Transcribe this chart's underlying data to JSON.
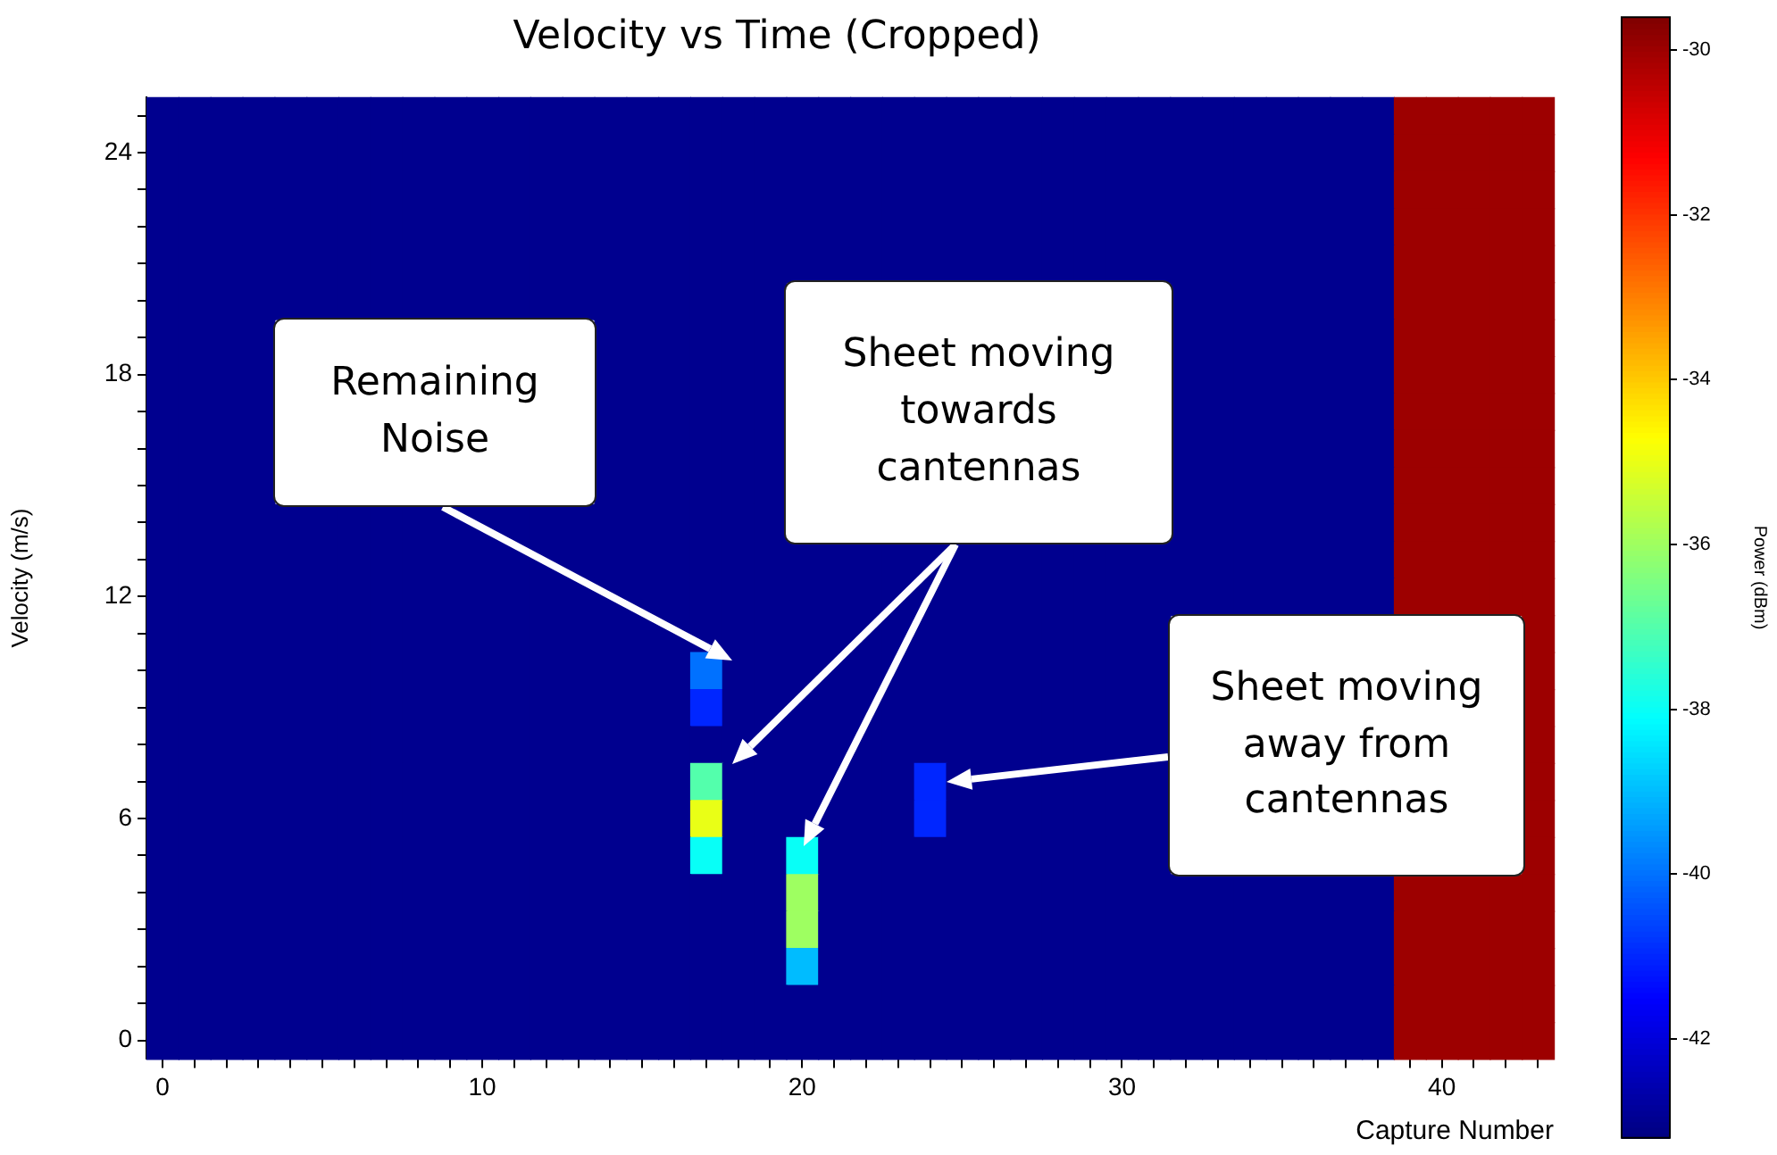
{
  "chart_data": {
    "type": "heatmap",
    "title": "Velocity vs Time (Cropped)",
    "xlabel": "Capture Number",
    "ylabel": "Velocity (m/s)",
    "clabel": "Power (dBm)",
    "categories": [
      "0",
      null,
      null,
      null,
      null,
      null,
      null,
      null,
      null,
      null,
      "10",
      null,
      null,
      null,
      null,
      null,
      null,
      null,
      null,
      null,
      "20",
      null,
      null,
      null,
      null,
      null,
      null,
      null,
      null,
      null,
      "30",
      null,
      null,
      null,
      null,
      null,
      null,
      null,
      null,
      null,
      "40",
      null,
      null,
      null
    ],
    "y_categories": [
      null,
      "24",
      null,
      null,
      null,
      null,
      null,
      "18",
      null,
      null,
      null,
      null,
      null,
      "12",
      null,
      null,
      null,
      null,
      null,
      "6",
      null,
      null,
      null,
      null,
      null,
      "0"
    ],
    "cells": [
      [
        -43,
        -43,
        -43,
        -43,
        -43,
        -43,
        -43,
        -43,
        -43,
        -43,
        -43,
        -43,
        -43,
        -43,
        -43,
        -43,
        -43,
        -43,
        -43,
        -43,
        -43,
        -43,
        -43,
        -43,
        -43,
        -43,
        -43,
        -43,
        -43,
        -43,
        -43,
        -43,
        -43,
        -43,
        -43,
        -43,
        -43,
        -43,
        -43,
        -30,
        -30,
        -30,
        -30,
        -30
      ],
      [
        -43,
        -43,
        -43,
        -43,
        -43,
        -43,
        -43,
        -43,
        -43,
        -43,
        -43,
        -43,
        -43,
        -43,
        -43,
        -43,
        -43,
        -43,
        -43,
        -43,
        -43,
        -43,
        -43,
        -43,
        -43,
        -43,
        -43,
        -43,
        -43,
        -43,
        -43,
        -43,
        -43,
        -43,
        -43,
        -43,
        -43,
        -43,
        -43,
        -30,
        -30,
        -30,
        -30,
        -30
      ],
      [
        -43,
        -43,
        -43,
        -43,
        -43,
        -43,
        -43,
        -43,
        -43,
        -43,
        -43,
        -43,
        -43,
        -43,
        -43,
        -43,
        -43,
        -43,
        -43,
        -43,
        -43,
        -43,
        -43,
        -43,
        -43,
        -43,
        -43,
        -43,
        -43,
        -43,
        -43,
        -43,
        -43,
        -43,
        -43,
        -43,
        -43,
        -43,
        -43,
        -30,
        -30,
        -30,
        -30,
        -30
      ],
      [
        -43,
        -43,
        -43,
        -43,
        -43,
        -43,
        -43,
        -43,
        -43,
        -43,
        -43,
        -43,
        -43,
        -43,
        -43,
        -43,
        -43,
        -43,
        -43,
        -43,
        -43,
        -43,
        -43,
        -43,
        -43,
        -43,
        -43,
        -43,
        -43,
        -43,
        -43,
        -43,
        -43,
        -43,
        -43,
        -43,
        -43,
        -43,
        -43,
        -30,
        -30,
        -30,
        -30,
        -30
      ],
      [
        -43,
        -43,
        -43,
        -43,
        -43,
        -43,
        -43,
        -43,
        -43,
        -43,
        -43,
        -43,
        -43,
        -43,
        -43,
        -43,
        -43,
        -43,
        -43,
        -43,
        -43,
        -43,
        -43,
        -43,
        -43,
        -43,
        -43,
        -43,
        -43,
        -43,
        -43,
        -43,
        -43,
        -43,
        -43,
        -43,
        -43,
        -43,
        -43,
        -30,
        -30,
        -30,
        -30,
        -30
      ],
      [
        -43,
        -43,
        -43,
        -43,
        -43,
        -43,
        -43,
        -43,
        -43,
        -43,
        -43,
        -43,
        -43,
        -43,
        -43,
        -43,
        -43,
        -43,
        -43,
        -43,
        null,
        null,
        null,
        null,
        null,
        null,
        null,
        null,
        null,
        null,
        null,
        null,
        -43,
        -43,
        -43,
        -43,
        -43,
        -43,
        -43,
        -30,
        -30,
        -30,
        -30,
        -30
      ],
      [
        -43,
        -43,
        -43,
        -43,
        null,
        null,
        null,
        null,
        null,
        null,
        null,
        null,
        null,
        null,
        -43,
        -43,
        -43,
        -43,
        -43,
        -43,
        null,
        null,
        null,
        null,
        null,
        null,
        null,
        null,
        null,
        null,
        null,
        null,
        -43,
        -43,
        -43,
        -43,
        -43,
        -43,
        -43,
        -30,
        -30,
        -30,
        -30,
        -30
      ],
      [
        -43,
        -43,
        -43,
        -43,
        null,
        null,
        null,
        null,
        null,
        null,
        null,
        null,
        null,
        null,
        -43,
        -43,
        -43,
        -43,
        -43,
        -43,
        null,
        null,
        null,
        null,
        null,
        null,
        null,
        null,
        null,
        null,
        null,
        null,
        -43,
        -43,
        -43,
        -43,
        -43,
        -43,
        -43,
        -30,
        -30,
        -30,
        -30,
        -30
      ],
      [
        -43,
        -43,
        -43,
        -43,
        null,
        null,
        null,
        null,
        null,
        null,
        null,
        null,
        null,
        null,
        -43,
        -43,
        -43,
        -43,
        -43,
        -43,
        null,
        null,
        null,
        null,
        null,
        null,
        null,
        null,
        null,
        null,
        null,
        null,
        -43,
        -43,
        -43,
        -43,
        -43,
        -43,
        -43,
        -30,
        -30,
        -30,
        -30,
        -30
      ],
      [
        -43,
        -43,
        -43,
        -43,
        null,
        null,
        null,
        null,
        null,
        null,
        null,
        null,
        null,
        null,
        -43,
        -43,
        -43,
        -43,
        -43,
        -43,
        null,
        null,
        null,
        null,
        null,
        null,
        null,
        null,
        null,
        null,
        null,
        null,
        -43,
        -43,
        -43,
        -43,
        -43,
        -43,
        -43,
        -30,
        -30,
        -30,
        -30,
        -30
      ],
      [
        -43,
        -43,
        -43,
        -43,
        null,
        null,
        null,
        null,
        null,
        null,
        null,
        null,
        null,
        null,
        -43,
        -43,
        -43,
        -43,
        -43,
        -43,
        null,
        null,
        null,
        null,
        null,
        null,
        null,
        null,
        null,
        null,
        null,
        null,
        -43,
        -43,
        -43,
        -43,
        -43,
        -43,
        -43,
        -30,
        -30,
        -30,
        -30,
        -30
      ],
      [
        -43,
        -43,
        -43,
        -43,
        -43,
        -43,
        -43,
        -43,
        -43,
        -43,
        -43,
        -43,
        -43,
        -43,
        -43,
        -43,
        -43,
        -43,
        -43,
        -43,
        null,
        null,
        null,
        null,
        null,
        null,
        null,
        null,
        null,
        null,
        null,
        null,
        -43,
        -43,
        -43,
        -43,
        -43,
        -43,
        -43,
        -30,
        -30,
        -30,
        -30,
        -30
      ],
      [
        -43,
        -43,
        -43,
        -43,
        -43,
        -43,
        -43,
        -43,
        -43,
        -43,
        -43,
        -43,
        -43,
        -43,
        -43,
        -43,
        -43,
        -43,
        -43,
        -43,
        -43,
        -43,
        -43,
        -43,
        -43,
        -43,
        -43,
        -43,
        -43,
        -43,
        -43,
        -43,
        -43,
        -43,
        -43,
        -43,
        -43,
        -43,
        -43,
        -30,
        -30,
        -30,
        -30,
        -30
      ],
      [
        -43,
        -43,
        -43,
        -43,
        -43,
        -43,
        -43,
        -43,
        -43,
        -43,
        -43,
        -43,
        -43,
        -43,
        -43,
        -43,
        -43,
        -43,
        -43,
        -43,
        -43,
        -43,
        -43,
        -43,
        -43,
        -43,
        -43,
        -43,
        -43,
        -43,
        -43,
        -43,
        -43,
        -43,
        -43,
        -43,
        -43,
        -43,
        -43,
        -30,
        -30,
        -30,
        -30,
        -30
      ],
      [
        -43,
        -43,
        -43,
        -43,
        -43,
        -43,
        -43,
        -43,
        -43,
        -43,
        -43,
        -43,
        -43,
        -43,
        -43,
        -43,
        -43,
        -43,
        -43,
        -43,
        -43,
        -43,
        -43,
        -43,
        -43,
        -43,
        -43,
        -43,
        -43,
        -43,
        -43,
        -43,
        null,
        null,
        null,
        null,
        null,
        null,
        null,
        null,
        null,
        null,
        null,
        -30
      ],
      [
        -43,
        -43,
        -43,
        -43,
        -43,
        -43,
        -43,
        -43,
        -43,
        -43,
        -43,
        -43,
        -43,
        -43,
        -43,
        -43,
        -43,
        -40,
        -43,
        -43,
        -43,
        -43,
        -43,
        -43,
        -43,
        -43,
        -43,
        -43,
        -43,
        -43,
        -43,
        -43,
        null,
        null,
        null,
        null,
        null,
        null,
        null,
        null,
        null,
        null,
        null,
        -30
      ],
      [
        -43,
        -43,
        -43,
        -43,
        -43,
        -43,
        -43,
        -43,
        -43,
        -43,
        -43,
        -43,
        -43,
        -43,
        -43,
        -43,
        -43,
        -41,
        -43,
        -43,
        -43,
        -43,
        -43,
        -43,
        -43,
        -43,
        -43,
        -43,
        -43,
        -43,
        -43,
        -43,
        null,
        null,
        null,
        null,
        null,
        null,
        null,
        null,
        null,
        null,
        null,
        -30
      ],
      [
        -43,
        -43,
        -43,
        -43,
        -43,
        -43,
        -43,
        -43,
        -43,
        -43,
        -43,
        -43,
        -43,
        -43,
        -43,
        -43,
        -43,
        -43,
        -43,
        -43,
        -43,
        -43,
        -43,
        -43,
        -43,
        -43,
        -43,
        -43,
        -43,
        -43,
        -43,
        -43,
        null,
        null,
        null,
        null,
        null,
        null,
        null,
        null,
        null,
        null,
        null,
        -30
      ],
      [
        -43,
        -43,
        -43,
        -43,
        -43,
        -43,
        -43,
        -43,
        -43,
        -43,
        -43,
        -43,
        -43,
        -43,
        -43,
        -43,
        -43,
        -37,
        -43,
        -43,
        -43,
        -43,
        -43,
        -43,
        -41,
        -43,
        -43,
        -43,
        -43,
        -43,
        -43,
        -43,
        null,
        null,
        null,
        null,
        null,
        null,
        null,
        null,
        null,
        null,
        null,
        -30
      ],
      [
        -43,
        -43,
        -43,
        -43,
        -43,
        -43,
        -43,
        -43,
        -43,
        -43,
        -43,
        -43,
        -43,
        -43,
        -43,
        -43,
        -43,
        -35,
        -43,
        -43,
        -43,
        -43,
        -43,
        -43,
        -41,
        -43,
        -43,
        -43,
        -43,
        -43,
        -43,
        -43,
        null,
        null,
        null,
        null,
        null,
        null,
        null,
        null,
        null,
        null,
        null,
        -30
      ],
      [
        -43,
        -43,
        -43,
        -43,
        -43,
        -43,
        -43,
        -43,
        -43,
        -43,
        -43,
        -43,
        -43,
        -43,
        -43,
        -43,
        -43,
        -38,
        -43,
        -43,
        -38,
        -43,
        -43,
        -43,
        -43,
        -43,
        -43,
        -43,
        -43,
        -43,
        -43,
        -43,
        null,
        null,
        null,
        null,
        null,
        null,
        null,
        null,
        null,
        null,
        null,
        -30
      ],
      [
        -43,
        -43,
        -43,
        -43,
        -43,
        -43,
        -43,
        -43,
        -43,
        -43,
        -43,
        -43,
        -43,
        -43,
        -43,
        -43,
        -43,
        -43,
        -43,
        -43,
        -36,
        -43,
        -43,
        -43,
        -43,
        -43,
        -43,
        -43,
        -43,
        -43,
        -43,
        -43,
        -43,
        -43,
        -43,
        -43,
        -43,
        -43,
        -43,
        -30,
        -30,
        -30,
        -30,
        -30
      ],
      [
        -43,
        -43,
        -43,
        -43,
        -43,
        -43,
        -43,
        -43,
        -43,
        -43,
        -43,
        -43,
        -43,
        -43,
        -43,
        -43,
        -43,
        -43,
        -43,
        -43,
        -36,
        -43,
        -43,
        -43,
        -43,
        -43,
        -43,
        -43,
        -43,
        -43,
        -43,
        -43,
        -43,
        -43,
        -43,
        -43,
        -43,
        -43,
        -43,
        -30,
        -30,
        -30,
        -30,
        -30
      ],
      [
        -43,
        -43,
        -43,
        -43,
        -43,
        -43,
        -43,
        -43,
        -43,
        -43,
        -43,
        -43,
        -43,
        -43,
        -43,
        -43,
        -43,
        -43,
        -43,
        -43,
        -39,
        -43,
        -43,
        -43,
        -43,
        -43,
        -43,
        -43,
        -43,
        -43,
        -43,
        -43,
        -43,
        -43,
        -43,
        -43,
        -43,
        -43,
        -43,
        -30,
        -30,
        -30,
        -30,
        -30
      ],
      [
        -43,
        -43,
        -43,
        -43,
        -43,
        -43,
        -43,
        -43,
        -43,
        -43,
        -43,
        -43,
        -43,
        -43,
        -43,
        -43,
        -43,
        -43,
        -43,
        -43,
        -43,
        -43,
        -43,
        -43,
        -43,
        -43,
        -43,
        -43,
        -43,
        -43,
        -43,
        -43,
        -43,
        -43,
        -43,
        -43,
        -43,
        -43,
        -43,
        -30,
        -30,
        -30,
        -30,
        -30
      ],
      [
        -43,
        -43,
        -43,
        -43,
        -43,
        -43,
        -43,
        -43,
        -43,
        -43,
        -43,
        -43,
        -43,
        -43,
        -43,
        -43,
        -43,
        -43,
        -43,
        -43,
        -43,
        -43,
        -43,
        -43,
        -43,
        -43,
        -43,
        -43,
        -43,
        -43,
        -43,
        -43,
        -43,
        -43,
        -43,
        -43,
        -43,
        -43,
        -43,
        -30,
        -30,
        -30,
        -30,
        -30
      ]
    ],
    "clim": [
      -43.2,
      -29.6
    ],
    "cticks": [
      -42,
      -40,
      -38,
      -36,
      -34,
      -32,
      -30
    ],
    "annotations": [
      "Remaining Noise",
      "Sheet moving towards cantennas",
      "Sheet moving away from cantennas"
    ]
  }
}
